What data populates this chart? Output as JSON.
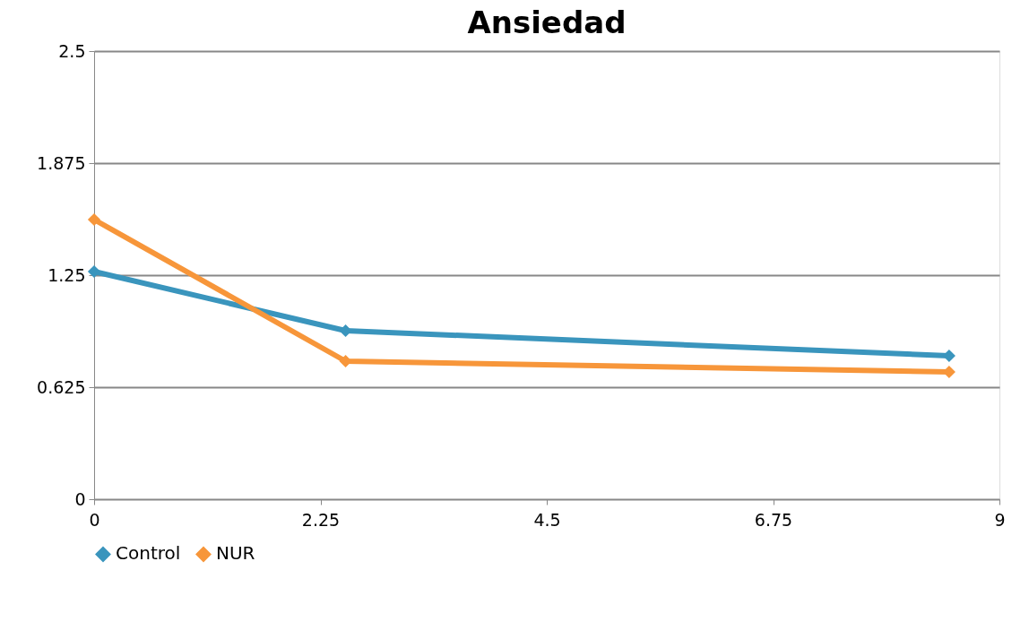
{
  "chart_data": {
    "type": "line",
    "title": "Ansiedad",
    "x": [
      0,
      2.5,
      8.5
    ],
    "series": [
      {
        "name": "Control",
        "color": "#3a95bd",
        "values": [
          1.27,
          0.94,
          0.8
        ]
      },
      {
        "name": "NUR",
        "color": "#f7963a",
        "values": [
          1.56,
          0.77,
          0.71
        ]
      }
    ],
    "xlim": [
      0,
      9
    ],
    "xticks": [
      0,
      2.25,
      4.5,
      6.75,
      9
    ],
    "ylim": [
      0,
      2.5
    ],
    "yticks": [
      0,
      0.625,
      1.25,
      1.875,
      2.5
    ],
    "grid": "y",
    "legend": "bottom",
    "marker": "diamond",
    "line_style": "solid"
  }
}
